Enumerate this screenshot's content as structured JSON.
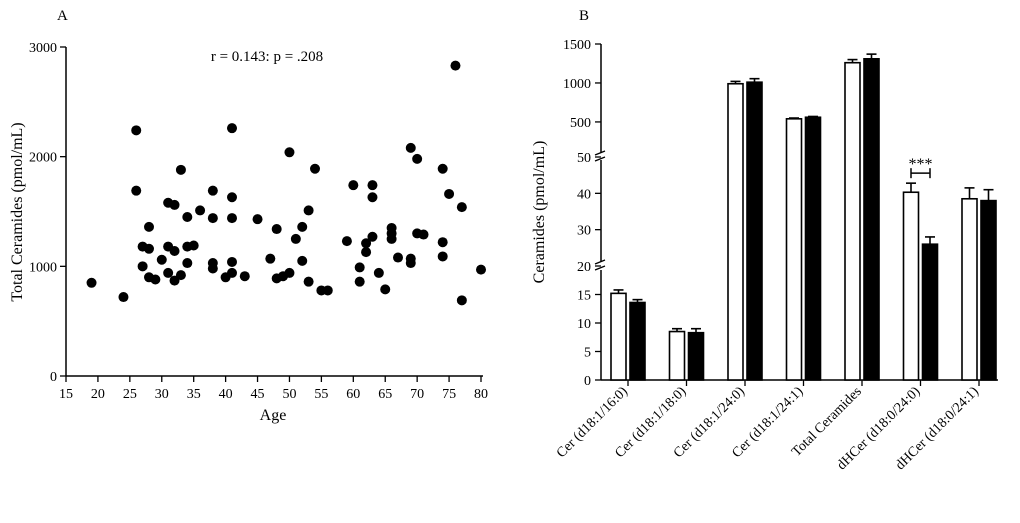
{
  "chart_data": [
    {
      "panel": "A",
      "type": "scatter",
      "title": "",
      "annotation": "r = 0.143: p = .208",
      "xlabel": "Age",
      "ylabel": "Total Ceramides (pmol/mL)",
      "xlim": [
        15,
        80
      ],
      "ylim": [
        0,
        3000
      ],
      "xticks": [
        "15",
        "20",
        "25",
        "30",
        "35",
        "40",
        "45",
        "50",
        "55",
        "60",
        "65",
        "70",
        "75",
        "80"
      ],
      "yticks": [
        "0",
        "1000",
        "2000",
        "3000"
      ],
      "points": [
        {
          "x": 19,
          "y": 850
        },
        {
          "x": 24,
          "y": 720
        },
        {
          "x": 26,
          "y": 2240
        },
        {
          "x": 26,
          "y": 1690
        },
        {
          "x": 27,
          "y": 1180
        },
        {
          "x": 27,
          "y": 1000
        },
        {
          "x": 28,
          "y": 1160
        },
        {
          "x": 28,
          "y": 1360
        },
        {
          "x": 28,
          "y": 900
        },
        {
          "x": 29,
          "y": 880
        },
        {
          "x": 30,
          "y": 1060
        },
        {
          "x": 31,
          "y": 1580
        },
        {
          "x": 31,
          "y": 1180
        },
        {
          "x": 31,
          "y": 940
        },
        {
          "x": 32,
          "y": 1560
        },
        {
          "x": 32,
          "y": 1140
        },
        {
          "x": 32,
          "y": 870
        },
        {
          "x": 33,
          "y": 1880
        },
        {
          "x": 33,
          "y": 920
        },
        {
          "x": 34,
          "y": 1450
        },
        {
          "x": 34,
          "y": 1180
        },
        {
          "x": 34,
          "y": 1030
        },
        {
          "x": 35,
          "y": 1190
        },
        {
          "x": 36,
          "y": 1510
        },
        {
          "x": 38,
          "y": 1690
        },
        {
          "x": 38,
          "y": 1440
        },
        {
          "x": 38,
          "y": 1030
        },
        {
          "x": 38,
          "y": 980
        },
        {
          "x": 40,
          "y": 900
        },
        {
          "x": 41,
          "y": 2260
        },
        {
          "x": 41,
          "y": 1630
        },
        {
          "x": 41,
          "y": 1440
        },
        {
          "x": 41,
          "y": 1040
        },
        {
          "x": 41,
          "y": 940
        },
        {
          "x": 43,
          "y": 910
        },
        {
          "x": 45,
          "y": 1430
        },
        {
          "x": 47,
          "y": 1070
        },
        {
          "x": 48,
          "y": 1340
        },
        {
          "x": 48,
          "y": 890
        },
        {
          "x": 49,
          "y": 910
        },
        {
          "x": 50,
          "y": 2040
        },
        {
          "x": 50,
          "y": 940
        },
        {
          "x": 51,
          "y": 1250
        },
        {
          "x": 52,
          "y": 1360
        },
        {
          "x": 52,
          "y": 1050
        },
        {
          "x": 53,
          "y": 1510
        },
        {
          "x": 53,
          "y": 860
        },
        {
          "x": 54,
          "y": 1890
        },
        {
          "x": 55,
          "y": 780
        },
        {
          "x": 56,
          "y": 780
        },
        {
          "x": 59,
          "y": 1230
        },
        {
          "x": 60,
          "y": 1740
        },
        {
          "x": 61,
          "y": 990
        },
        {
          "x": 61,
          "y": 860
        },
        {
          "x": 62,
          "y": 1210
        },
        {
          "x": 62,
          "y": 1130
        },
        {
          "x": 63,
          "y": 1740
        },
        {
          "x": 63,
          "y": 1630
        },
        {
          "x": 63,
          "y": 1270
        },
        {
          "x": 64,
          "y": 940
        },
        {
          "x": 65,
          "y": 790
        },
        {
          "x": 66,
          "y": 1350
        },
        {
          "x": 66,
          "y": 1300
        },
        {
          "x": 66,
          "y": 1250
        },
        {
          "x": 67,
          "y": 1080
        },
        {
          "x": 69,
          "y": 2080
        },
        {
          "x": 69,
          "y": 1070
        },
        {
          "x": 69,
          "y": 1030
        },
        {
          "x": 70,
          "y": 1980
        },
        {
          "x": 70,
          "y": 1300
        },
        {
          "x": 71,
          "y": 1290
        },
        {
          "x": 74,
          "y": 1890
        },
        {
          "x": 74,
          "y": 1220
        },
        {
          "x": 74,
          "y": 1090
        },
        {
          "x": 75,
          "y": 1660
        },
        {
          "x": 76,
          "y": 2830
        },
        {
          "x": 77,
          "y": 1540
        },
        {
          "x": 77,
          "y": 690
        },
        {
          "x": 80,
          "y": 970
        }
      ]
    },
    {
      "panel": "B",
      "type": "bar",
      "title": "",
      "ylabel": "Ceramides (pmol/mL)",
      "categories": [
        "Cer (d18:1/16:0)",
        "Cer (d18:1/18:0)",
        "Cer (d18:1/24:0)",
        "Cer (d18:1/24:1)",
        "Total Ceramides",
        "dHCer (d18:0/24:0)",
        "dHCer (d18:0/24:1)"
      ],
      "series": [
        {
          "name": "open",
          "color": "#ffffff",
          "values": [
            15.2,
            8.5,
            990,
            540,
            1260,
            40.3,
            38.5
          ],
          "errors": [
            0.6,
            0.5,
            30,
            10,
            40,
            2.5,
            3.0
          ]
        },
        {
          "name": "filled",
          "color": "#000000",
          "values": [
            13.6,
            8.3,
            1010,
            560,
            1310,
            26.0,
            38.0
          ],
          "errors": [
            0.5,
            0.7,
            45,
            10,
            60,
            2.0,
            3.0
          ]
        }
      ],
      "y_axis_segments": [
        {
          "range": [
            0,
            20
          ],
          "ticks": [
            "0",
            "5",
            "10",
            "15",
            "20"
          ]
        },
        {
          "range": [
            20,
            50
          ],
          "ticks": [
            "20",
            "30",
            "40",
            "50"
          ]
        },
        {
          "range": [
            50,
            1500
          ],
          "ticks": [
            "50",
            "500",
            "1000",
            "1500"
          ]
        }
      ],
      "significance": {
        "category": "dHCer (d18:0/24:0)",
        "label": "***"
      }
    }
  ]
}
